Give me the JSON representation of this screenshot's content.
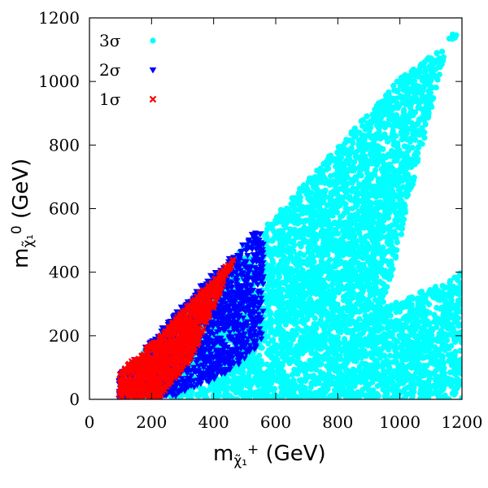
{
  "chart_data": {
    "type": "scatter",
    "title": "",
    "xlabel": "m_{χ̃₁⁺} (GeV)",
    "ylabel": "m_{χ̃₁⁰} (GeV)",
    "xlim": [
      0,
      1200
    ],
    "ylim": [
      0,
      1200
    ],
    "xticks": [
      "0",
      "200",
      "400",
      "600",
      "800",
      "1000",
      "1200"
    ],
    "yticks": [
      "0",
      "200",
      "400",
      "600",
      "800",
      "1000",
      "1200"
    ],
    "grid": false,
    "legend_position": "top-left",
    "series": [
      {
        "name": "3σ",
        "marker": "circle",
        "color": "#00ffff",
        "region": [
          [
            95,
            0
          ],
          [
            1200,
            0
          ],
          [
            1200,
            400
          ],
          [
            1050,
            330
          ],
          [
            950,
            290
          ],
          [
            1160,
            1150
          ],
          [
            1200,
            1150
          ],
          [
            1000,
            1010
          ],
          [
            600,
            580
          ],
          [
            400,
            380
          ],
          [
            300,
            280
          ],
          [
            200,
            180
          ],
          [
            150,
            120
          ],
          [
            100,
            80
          ]
        ]
      },
      {
        "name": "2σ",
        "marker": "triangle-down",
        "color": "#0000ff",
        "region": [
          [
            95,
            0
          ],
          [
            250,
            0
          ],
          [
            400,
            60
          ],
          [
            500,
            120
          ],
          [
            560,
            190
          ],
          [
            560,
            530
          ],
          [
            520,
            520
          ],
          [
            470,
            460
          ],
          [
            400,
            400
          ],
          [
            300,
            300
          ],
          [
            200,
            190
          ],
          [
            130,
            110
          ],
          [
            95,
            80
          ]
        ]
      },
      {
        "name": "1σ",
        "marker": "x",
        "color": "#ff0000",
        "region": [
          [
            95,
            0
          ],
          [
            220,
            0
          ],
          [
            330,
            130
          ],
          [
            370,
            220
          ],
          [
            470,
            450
          ],
          [
            400,
            380
          ],
          [
            300,
            280
          ],
          [
            230,
            200
          ],
          [
            160,
            140
          ],
          [
            110,
            100
          ],
          [
            95,
            80
          ]
        ]
      }
    ]
  }
}
